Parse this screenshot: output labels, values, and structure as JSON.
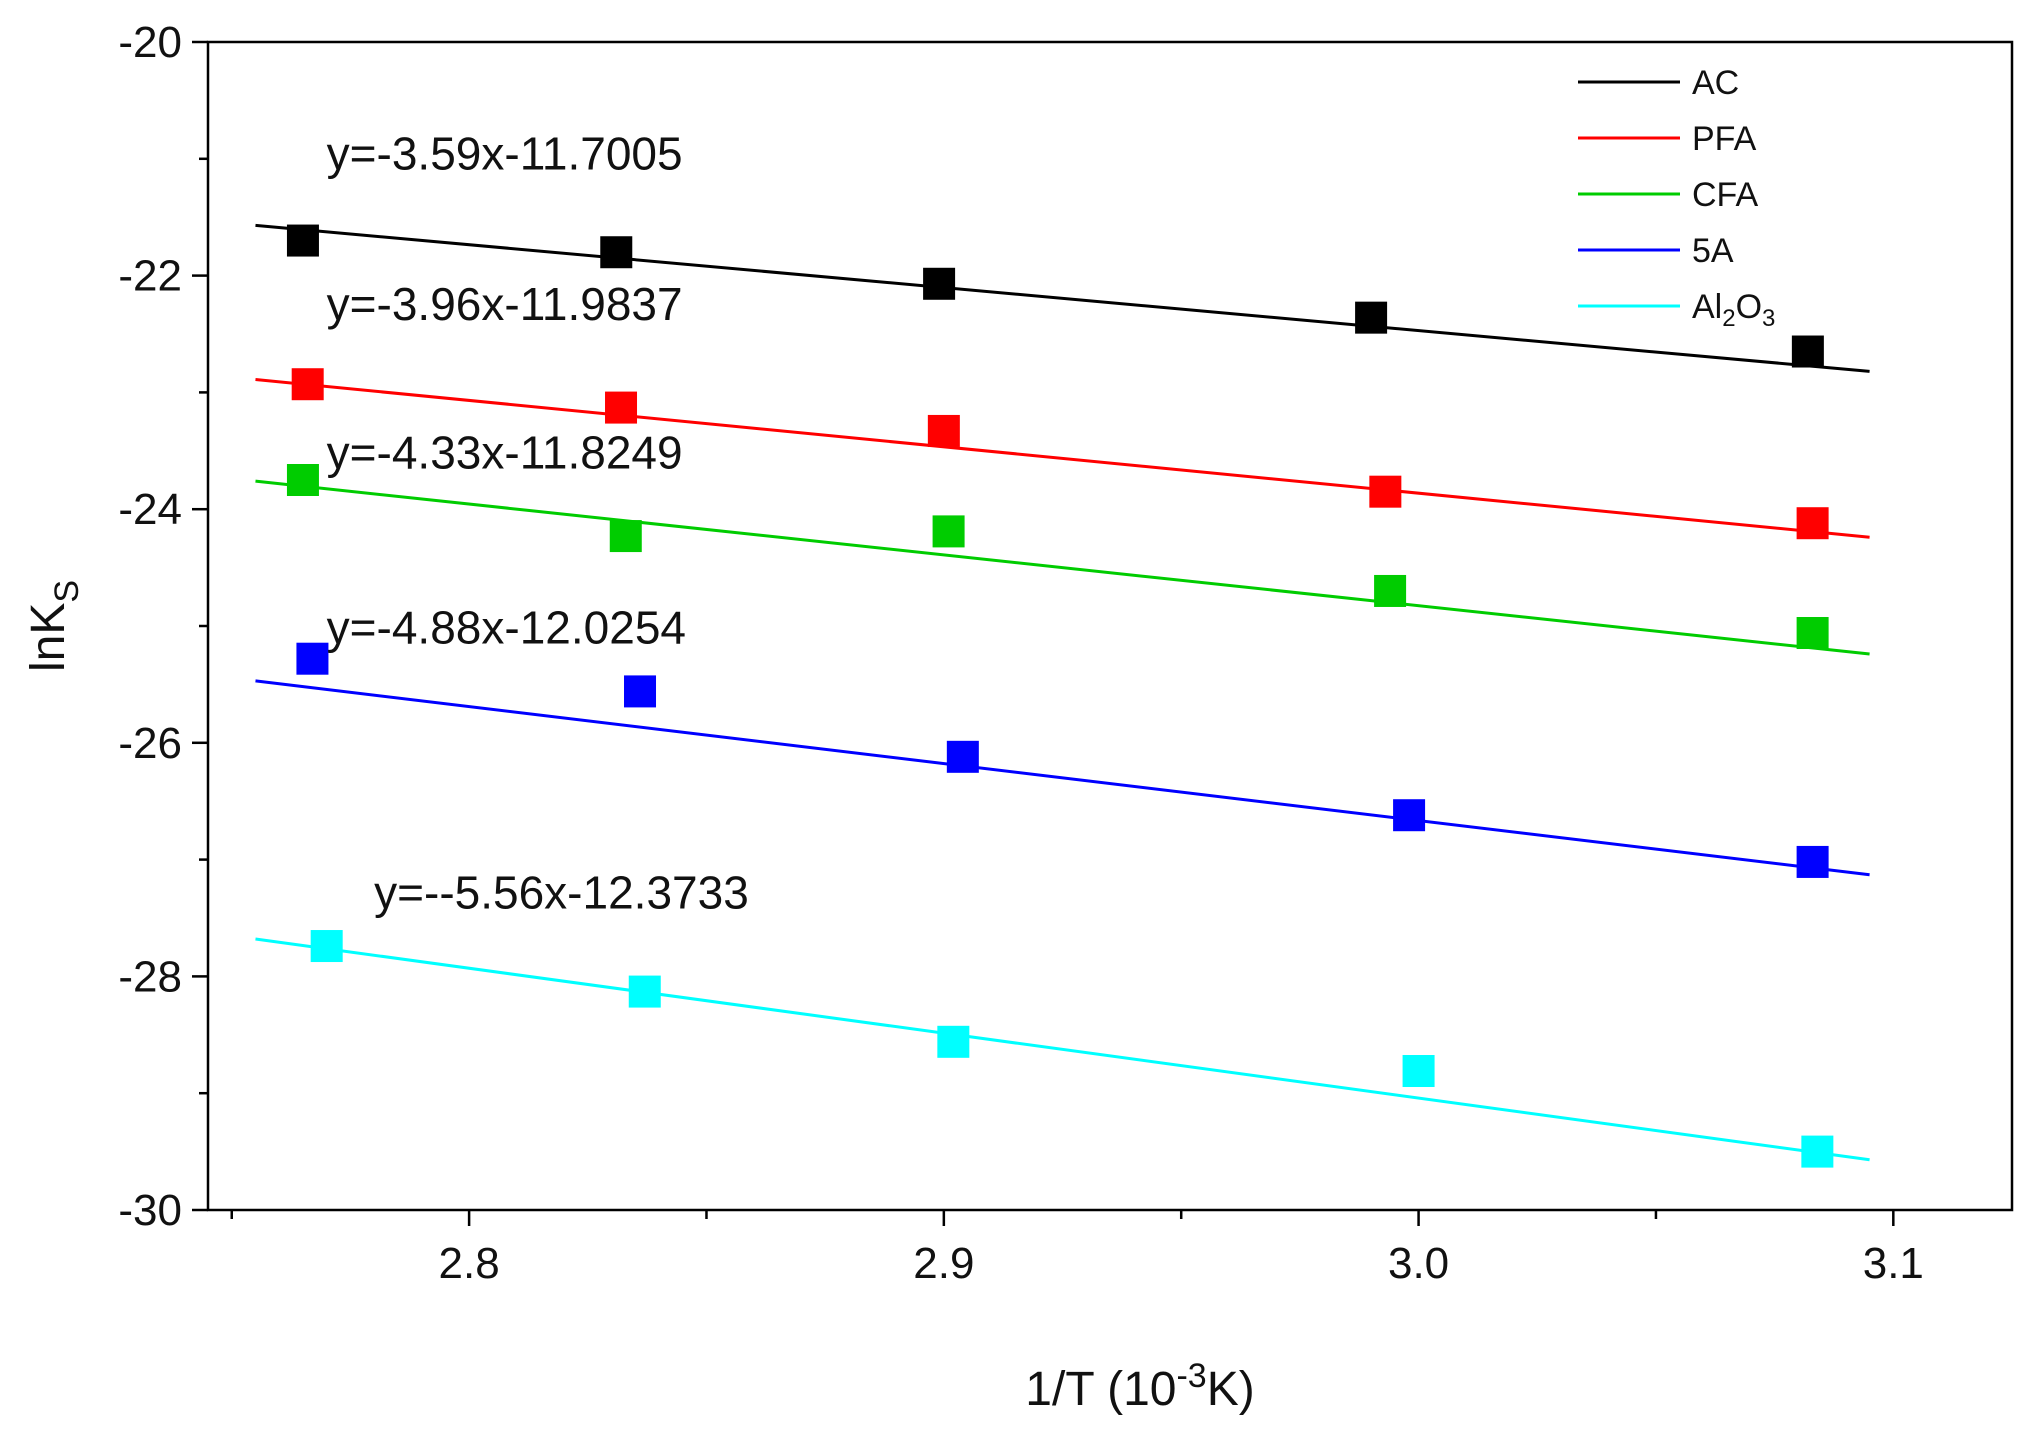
{
  "chart_data": {
    "type": "scatter",
    "title": "",
    "xlabel": "1/T  (10",
    "xlabel_sup": "-3",
    "xlabel_tail": "K)",
    "ylabel": "lnK",
    "ylabel_sub": "S",
    "xlim": [
      2.745,
      3.125
    ],
    "ylim": [
      -30,
      -20
    ],
    "x_ticks": [
      2.8,
      2.9,
      3.0,
      3.1
    ],
    "x_tick_labels": [
      "2.8",
      "2.9",
      "3.0",
      "3.1"
    ],
    "y_ticks": [
      -30,
      -28,
      -26,
      -24,
      -22,
      -20
    ],
    "y_tick_labels": [
      "-30",
      "-28",
      "-26",
      "-24",
      "-22",
      "-20"
    ],
    "legend_position": "top-right",
    "fit_x_range": [
      2.755,
      3.095
    ],
    "series": [
      {
        "name": "AC",
        "name_parts": [
          [
            "AC",
            ""
          ]
        ],
        "color": "#000000",
        "equation": "y=-3.59x-11.7005",
        "x": [
          2.765,
          2.831,
          2.899,
          2.99,
          3.082
        ],
        "y": [
          -21.7,
          -21.8,
          -22.07,
          -22.36,
          -22.65
        ],
        "fit_endpoints": [
          -21.57,
          -22.82
        ]
      },
      {
        "name": "PFA",
        "name_parts": [
          [
            "PFA",
            ""
          ]
        ],
        "color": "#ff0000",
        "equation": "y=-3.96x-11.9837",
        "x": [
          2.766,
          2.832,
          2.9,
          2.993,
          3.083
        ],
        "y": [
          -22.93,
          -23.13,
          -23.33,
          -23.85,
          -24.12
        ],
        "fit_endpoints": [
          -22.89,
          -24.24
        ]
      },
      {
        "name": "CFA",
        "name_parts": [
          [
            "CFA",
            ""
          ]
        ],
        "color": "#00cc00",
        "equation": "y=-4.33x-11.8249",
        "x": [
          2.765,
          2.833,
          2.901,
          2.994,
          3.083
        ],
        "y": [
          -23.75,
          -24.23,
          -24.19,
          -24.7,
          -25.06
        ],
        "fit_endpoints": [
          -23.76,
          -25.24
        ]
      },
      {
        "name": "5A",
        "name_parts": [
          [
            "5A",
            ""
          ]
        ],
        "color": "#0000ff",
        "equation": "y=-4.88x-12.0254",
        "x": [
          2.767,
          2.836,
          2.904,
          2.998,
          3.083
        ],
        "y": [
          -25.28,
          -25.56,
          -26.12,
          -26.62,
          -27.02
        ],
        "fit_endpoints": [
          -25.47,
          -27.13
        ]
      },
      {
        "name": "Al2O3",
        "name_parts": [
          [
            "Al",
            ""
          ],
          [
            "2",
            "sub"
          ],
          [
            "O",
            ""
          ],
          [
            "3",
            "sub"
          ]
        ],
        "color": "#00ffff",
        "equation": "y=--5.56x-12.3733",
        "x": [
          2.77,
          2.837,
          2.902,
          3.0,
          3.084
        ],
        "y": [
          -27.74,
          -28.13,
          -28.56,
          -28.81,
          -29.5
        ],
        "fit_endpoints": [
          -27.68,
          -29.57
        ]
      }
    ]
  }
}
